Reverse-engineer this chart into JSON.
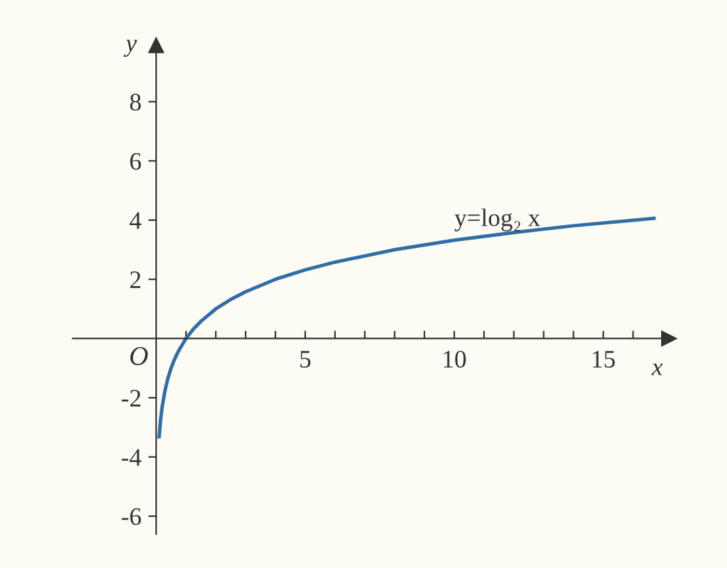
{
  "chart_data": {
    "type": "line",
    "xlabel": "x",
    "ylabel": "y",
    "x": [
      0.1,
      0.15,
      0.2,
      0.3,
      0.4,
      0.5,
      0.6,
      0.75,
      1,
      1.25,
      1.5,
      2,
      2.5,
      3,
      4,
      5,
      6,
      8,
      10,
      12,
      14,
      16.7
    ],
    "series": [
      {
        "name": "y=log₂ x",
        "color": "#2f6ea6",
        "values": [
          -3.32,
          -2.74,
          -2.32,
          -1.74,
          -1.32,
          -1,
          -0.74,
          -0.42,
          0,
          0.32,
          0.58,
          1,
          1.32,
          1.58,
          2,
          2.32,
          2.58,
          3,
          3.32,
          3.58,
          3.81,
          4.06
        ]
      }
    ],
    "xlim": [
      -2.8,
      17.2
    ],
    "ylim": [
      -6.6,
      9.9
    ],
    "xticks": [
      {
        "value": 1,
        "label": null
      },
      {
        "value": 2,
        "label": null
      },
      {
        "value": 3,
        "label": null
      },
      {
        "value": 4,
        "label": null
      },
      5,
      {
        "value": 6,
        "label": null
      },
      {
        "value": 7,
        "label": null
      },
      {
        "value": 8,
        "label": null
      },
      {
        "value": 9,
        "label": null
      },
      10,
      {
        "value": 11,
        "label": null
      },
      {
        "value": 12,
        "label": null
      },
      {
        "value": 13,
        "label": null
      },
      {
        "value": 14,
        "label": null
      },
      15,
      {
        "value": 16,
        "label": null
      }
    ],
    "yticks": [
      -6,
      -4,
      -2,
      2,
      4,
      6,
      8
    ],
    "annotations": [
      "O"
    ],
    "grid": false,
    "legend": false,
    "marker": "none",
    "line_style": "solid"
  }
}
